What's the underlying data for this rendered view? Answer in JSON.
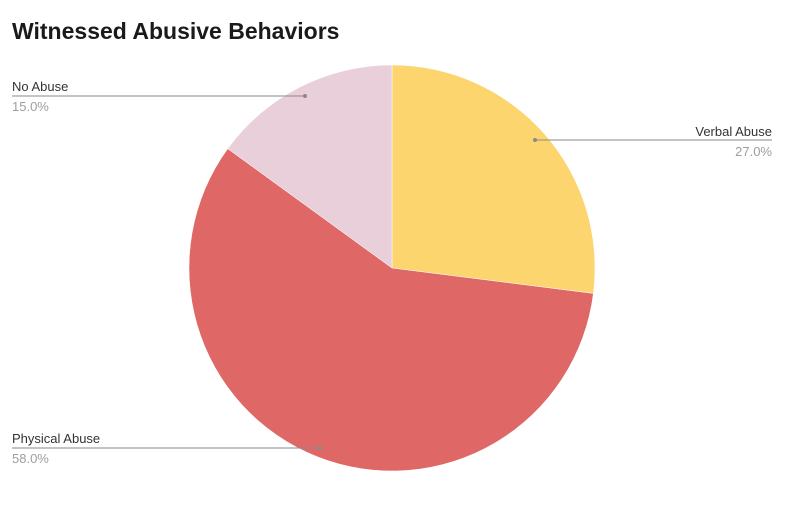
{
  "chart_data": {
    "type": "pie",
    "title": "Witnessed Abusive Behaviors",
    "start_angle_deg": 0,
    "direction": "clockwise",
    "slices": [
      {
        "label": "Verbal Abuse",
        "percent_label": "27.0%",
        "value": 27.0,
        "color": "#fdd56e"
      },
      {
        "label": "Physical Abuse",
        "percent_label": "58.0%",
        "value": 58.0,
        "color": "#df6766"
      },
      {
        "label": "No Abuse",
        "percent_label": "15.0%",
        "value": 15.0,
        "color": "#e9cfd9"
      }
    ]
  }
}
